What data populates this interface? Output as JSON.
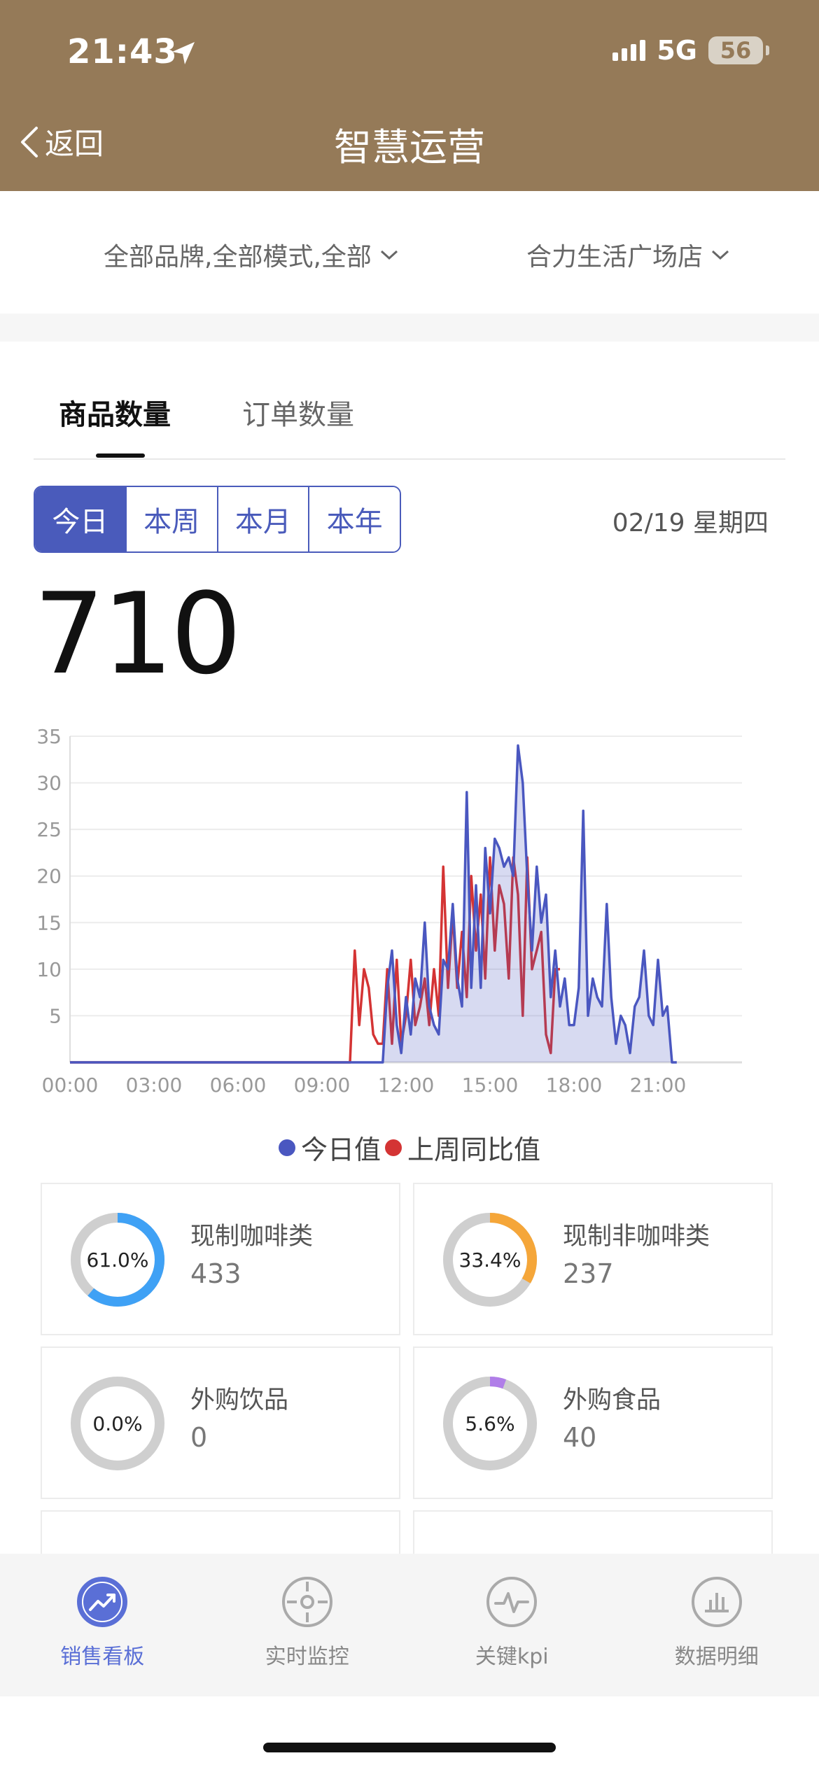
{
  "status_bar": {
    "time": "21:43",
    "network": "5G",
    "battery": "56"
  },
  "header": {
    "back_label": "返回",
    "title": "智慧运营"
  },
  "filters": {
    "brand_filter": "全部品牌,全部模式,全部",
    "store_filter": "合力生活广场店"
  },
  "tabs": [
    {
      "label": "商品数量",
      "active": true
    },
    {
      "label": "订单数量",
      "active": false
    }
  ],
  "periods": [
    {
      "label": "今日",
      "active": true
    },
    {
      "label": "本周"
    },
    {
      "label": "本月"
    },
    {
      "label": "本年"
    }
  ],
  "date": "02/19 星期四",
  "total": "710",
  "chart_data": {
    "type": "line",
    "x_ticks": [
      "00:00",
      "03:00",
      "06:00",
      "09:00",
      "12:00",
      "15:00",
      "18:00",
      "21:00"
    ],
    "y_ticks": [
      "5",
      "10",
      "15",
      "20",
      "25",
      "30",
      "35"
    ],
    "xlim": [
      0,
      24
    ],
    "ylim": [
      0,
      35
    ],
    "grid": true,
    "legend_position": "bottom",
    "colors": {
      "today": "#4a57c0",
      "last_week": "#d43434"
    },
    "series": [
      {
        "name": "今日值",
        "color": "#4a57c0",
        "area": true,
        "points": [
          [
            0,
            0
          ],
          [
            10.83,
            0
          ],
          [
            11.0,
            0
          ],
          [
            11.17,
            0
          ],
          [
            11.33,
            8
          ],
          [
            11.5,
            12
          ],
          [
            11.67,
            4
          ],
          [
            11.83,
            1
          ],
          [
            12.0,
            7
          ],
          [
            12.17,
            3
          ],
          [
            12.33,
            9
          ],
          [
            12.5,
            7
          ],
          [
            12.67,
            15
          ],
          [
            12.83,
            6
          ],
          [
            13.0,
            4
          ],
          [
            13.17,
            3
          ],
          [
            13.33,
            11
          ],
          [
            13.5,
            10
          ],
          [
            13.67,
            17
          ],
          [
            13.83,
            9
          ],
          [
            14.0,
            6
          ],
          [
            14.17,
            29
          ],
          [
            14.33,
            8
          ],
          [
            14.5,
            19
          ],
          [
            14.67,
            8
          ],
          [
            14.83,
            23
          ],
          [
            15.0,
            16
          ],
          [
            15.17,
            24
          ],
          [
            15.33,
            23
          ],
          [
            15.5,
            21
          ],
          [
            15.67,
            22
          ],
          [
            15.83,
            20
          ],
          [
            16.0,
            34
          ],
          [
            16.17,
            30
          ],
          [
            16.33,
            20
          ],
          [
            16.5,
            12
          ],
          [
            16.67,
            21
          ],
          [
            16.83,
            15
          ],
          [
            17.0,
            18
          ],
          [
            17.17,
            7
          ],
          [
            17.33,
            12
          ],
          [
            17.5,
            6
          ],
          [
            17.67,
            9
          ],
          [
            17.83,
            4
          ],
          [
            18.0,
            4
          ],
          [
            18.17,
            8
          ],
          [
            18.33,
            27
          ],
          [
            18.5,
            5
          ],
          [
            18.67,
            9
          ],
          [
            18.83,
            7
          ],
          [
            19.0,
            6
          ],
          [
            19.17,
            17
          ],
          [
            19.33,
            7
          ],
          [
            19.5,
            2
          ],
          [
            19.67,
            5
          ],
          [
            19.83,
            4
          ],
          [
            20.0,
            1
          ],
          [
            20.17,
            6
          ],
          [
            20.33,
            7
          ],
          [
            20.5,
            12
          ],
          [
            20.67,
            5
          ],
          [
            20.83,
            4
          ],
          [
            21.0,
            11
          ],
          [
            21.17,
            5
          ],
          [
            21.33,
            6
          ],
          [
            21.5,
            0
          ],
          [
            21.67,
            0
          ]
        ]
      },
      {
        "name": "上周同比值",
        "color": "#d43434",
        "area": false,
        "points": [
          [
            0,
            0
          ],
          [
            10.0,
            0
          ],
          [
            10.17,
            12
          ],
          [
            10.33,
            4
          ],
          [
            10.5,
            10
          ],
          [
            10.67,
            8
          ],
          [
            10.83,
            3
          ],
          [
            11.0,
            2
          ],
          [
            11.17,
            2
          ],
          [
            11.33,
            10
          ],
          [
            11.5,
            2
          ],
          [
            11.67,
            11
          ],
          [
            11.83,
            2
          ],
          [
            12.0,
            5
          ],
          [
            12.17,
            11
          ],
          [
            12.33,
            4
          ],
          [
            12.5,
            6
          ],
          [
            12.67,
            9
          ],
          [
            12.83,
            4
          ],
          [
            13.0,
            10
          ],
          [
            13.17,
            5
          ],
          [
            13.33,
            21
          ],
          [
            13.5,
            8
          ],
          [
            13.67,
            16
          ],
          [
            13.83,
            8
          ],
          [
            14.0,
            14
          ],
          [
            14.17,
            7
          ],
          [
            14.33,
            20
          ],
          [
            14.5,
            12
          ],
          [
            14.67,
            18
          ],
          [
            14.83,
            9
          ],
          [
            15.0,
            22
          ],
          [
            15.17,
            12
          ],
          [
            15.33,
            19
          ],
          [
            15.5,
            17
          ],
          [
            15.67,
            9
          ],
          [
            15.83,
            22
          ],
          [
            16.0,
            18
          ],
          [
            16.17,
            5
          ],
          [
            16.33,
            22
          ],
          [
            16.5,
            10
          ],
          [
            16.67,
            12
          ],
          [
            16.83,
            14
          ],
          [
            17.0,
            3
          ],
          [
            17.17,
            1
          ],
          [
            17.33,
            10
          ],
          [
            17.5,
            10
          ]
        ]
      }
    ]
  },
  "categories": [
    {
      "name": "现制咖啡类",
      "value": "433",
      "percent": "61.0%",
      "fraction": 0.61,
      "color": "#3fa1f5"
    },
    {
      "name": "现制非咖啡类",
      "value": "237",
      "percent": "33.4%",
      "fraction": 0.334,
      "color": "#f5a639"
    },
    {
      "name": "外购饮品",
      "value": "0",
      "percent": "0.0%",
      "fraction": 0.0,
      "color": "#3fa1f5"
    },
    {
      "name": "外购食品",
      "value": "40",
      "percent": "5.6%",
      "fraction": 0.056,
      "color": "#b07ee8"
    }
  ],
  "bottom_nav": [
    {
      "label": "销售看板",
      "icon": "trend-chart-icon",
      "active": true
    },
    {
      "label": "实时监控",
      "icon": "target-icon",
      "active": false
    },
    {
      "label": "关键kpi",
      "icon": "pulse-icon",
      "active": false
    },
    {
      "label": "数据明细",
      "icon": "bar-chart-icon",
      "active": false
    }
  ]
}
